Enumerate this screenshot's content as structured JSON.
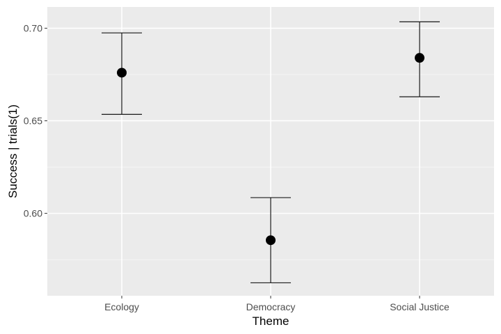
{
  "chart_data": {
    "type": "scatter",
    "title": "",
    "xlabel": "Theme",
    "ylabel": "Success | trials(1)",
    "categories": [
      "Ecology",
      "Democracy",
      "Social Justice"
    ],
    "points": [
      {
        "category": "Ecology",
        "y": 0.676,
        "lower": 0.6535,
        "upper": 0.6975
      },
      {
        "category": "Democracy",
        "y": 0.5855,
        "lower": 0.5625,
        "upper": 0.6085
      },
      {
        "category": "Social Justice",
        "y": 0.684,
        "lower": 0.663,
        "upper": 0.7035
      }
    ],
    "ylim": [
      0.5555,
      0.7115
    ],
    "yticks": [
      "0.60",
      "0.65",
      "0.70"
    ],
    "grid": true,
    "legend": "none"
  },
  "colors": {
    "panel": "#ebebeb",
    "grid_major": "#ffffff",
    "grid_minor": "#f5f5f5",
    "point": "#000000"
  }
}
